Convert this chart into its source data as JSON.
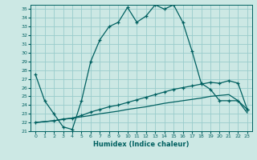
{
  "xlabel": "Humidex (Indice chaleur)",
  "background_color": "#cce8e4",
  "grid_color": "#99cccc",
  "line_color": "#006060",
  "xlim": [
    -0.5,
    23.5
  ],
  "ylim": [
    21,
    35.5
  ],
  "xticks": [
    0,
    1,
    2,
    3,
    4,
    5,
    6,
    7,
    8,
    9,
    10,
    11,
    12,
    13,
    14,
    15,
    16,
    17,
    18,
    19,
    20,
    21,
    22,
    23
  ],
  "yticks": [
    21,
    22,
    23,
    24,
    25,
    26,
    27,
    28,
    29,
    30,
    31,
    32,
    33,
    34,
    35
  ],
  "curve1_x": [
    0,
    1,
    2,
    3,
    4,
    5,
    6,
    7,
    8,
    9,
    10,
    11,
    12,
    13,
    14,
    15,
    16,
    17,
    18,
    19,
    20,
    21,
    22,
    23
  ],
  "curve1_y": [
    27.5,
    24.5,
    23.0,
    21.5,
    21.2,
    24.5,
    29.0,
    31.5,
    33.0,
    33.5,
    35.2,
    33.5,
    34.2,
    35.5,
    35.0,
    35.5,
    33.5,
    30.2,
    26.5,
    25.8,
    24.5,
    24.5,
    24.5,
    23.5
  ],
  "curve2_x": [
    0,
    2,
    3,
    4,
    5,
    6,
    7,
    8,
    9,
    10,
    11,
    12,
    13,
    14,
    15,
    16,
    17,
    18,
    19,
    20,
    21,
    22,
    23
  ],
  "curve2_y": [
    22.0,
    22.2,
    22.4,
    22.5,
    22.8,
    23.2,
    23.5,
    23.8,
    24.0,
    24.3,
    24.6,
    24.9,
    25.2,
    25.5,
    25.8,
    26.0,
    26.2,
    26.4,
    26.6,
    26.5,
    26.8,
    26.5,
    23.5
  ],
  "curve3_x": [
    0,
    1,
    2,
    3,
    4,
    5,
    6,
    7,
    8,
    9,
    10,
    11,
    12,
    13,
    14,
    15,
    16,
    17,
    18,
    19,
    20,
    21,
    22,
    23
  ],
  "curve3_y": [
    22.0,
    22.1,
    22.2,
    22.35,
    22.5,
    22.65,
    22.8,
    23.0,
    23.15,
    23.3,
    23.5,
    23.65,
    23.8,
    24.0,
    24.2,
    24.35,
    24.5,
    24.65,
    24.8,
    25.0,
    25.1,
    25.2,
    24.5,
    23.1
  ]
}
